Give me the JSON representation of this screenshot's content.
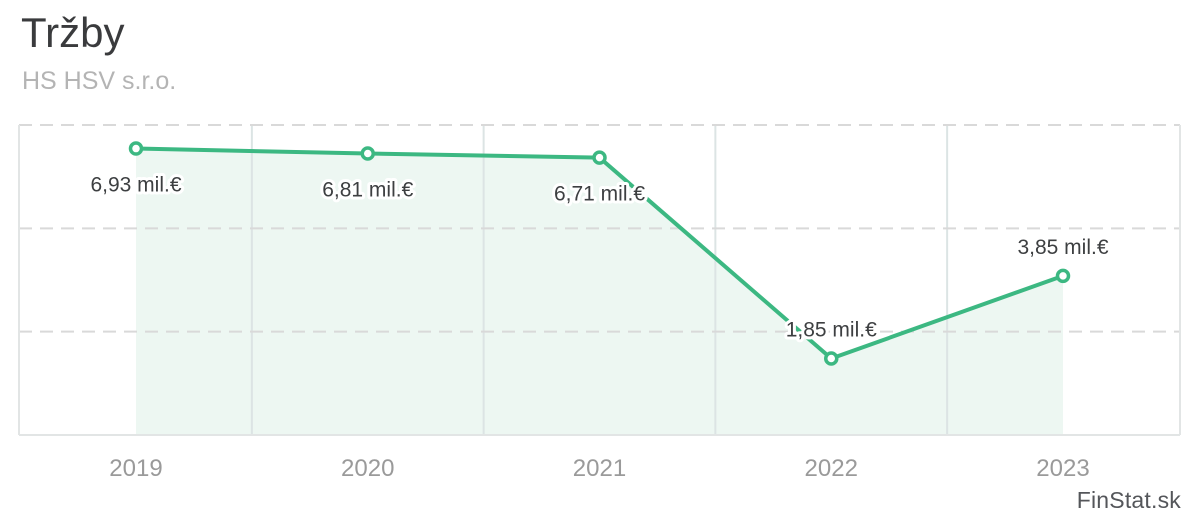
{
  "header": {
    "title": "Tržby",
    "subtitle": "HS HSV s.r.o."
  },
  "footer": {
    "brand": "FinStat.sk"
  },
  "chart_data": {
    "type": "line",
    "title": "Tržby",
    "subtitle": "HS HSV s.r.o.",
    "unit": "mil.€",
    "categories": [
      "2019",
      "2020",
      "2021",
      "2022",
      "2023"
    ],
    "values": [
      6.93,
      6.81,
      6.71,
      1.85,
      3.85
    ],
    "point_labels": [
      "6,93 mil.€",
      "6,81 mil.€",
      "6,71 mil.€",
      "1,85 mil.€",
      "3,85 mil.€"
    ],
    "label_positions": [
      "below",
      "below",
      "below",
      "above",
      "above"
    ],
    "ylim": [
      0,
      7.5
    ],
    "ygrid_values": [
      2.5,
      5,
      7.5
    ],
    "grid": {
      "horizontal": "dashed",
      "vertical": "solid-at-category-midpoints"
    },
    "legend": "none",
    "area_fill": true,
    "colors": {
      "line": "#3cb882",
      "marker_fill": "#ffffff",
      "area_fill": "#edf7f2",
      "grid_dashed": "#d9d9d9",
      "grid_vertical": "#dce4e4",
      "plot_border": "#e2e5e5",
      "tick_label": "#9a9a9a",
      "data_label": "#3d3f41",
      "title": "#3a3b3d",
      "subtitle": "#b4b4b4",
      "brand": "#54565a",
      "background": "#ffffff"
    }
  }
}
